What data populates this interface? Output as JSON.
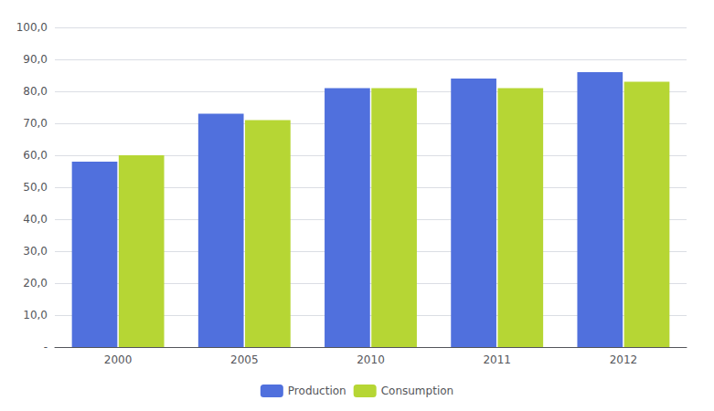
{
  "chart_data": {
    "type": "bar",
    "categories": [
      "2000",
      "2005",
      "2010",
      "2011",
      "2012"
    ],
    "series": [
      {
        "name": "Production",
        "values": [
          58.0,
          73.0,
          81.0,
          84.0,
          86.0
        ]
      },
      {
        "name": "Consumption",
        "values": [
          60.0,
          71.0,
          81.0,
          81.0,
          83.0
        ]
      }
    ],
    "ylim": [
      0,
      100
    ],
    "yticks": [
      {
        "value": 0,
        "label": "-"
      },
      {
        "value": 10,
        "label": "10,0"
      },
      {
        "value": 20,
        "label": "20,0"
      },
      {
        "value": 30,
        "label": "30,0"
      },
      {
        "value": 40,
        "label": "40,0"
      },
      {
        "value": 50,
        "label": "50,0"
      },
      {
        "value": 60,
        "label": "60,0"
      },
      {
        "value": 70,
        "label": "70,0"
      },
      {
        "value": 80,
        "label": "80,0"
      },
      {
        "value": 90,
        "label": "90,0"
      },
      {
        "value": 100,
        "label": "100,0"
      }
    ],
    "grid": true,
    "legend": "bottom"
  }
}
